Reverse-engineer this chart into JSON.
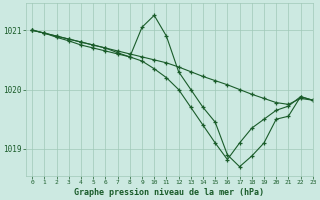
{
  "title": "Graphe pression niveau de la mer (hPa)",
  "background_color": "#cce9e1",
  "line_color": "#1a5c2a",
  "grid_color": "#a0c8b8",
  "text_color": "#1a5c2a",
  "xlim": [
    -0.5,
    23
  ],
  "ylim": [
    1018.55,
    1021.45
  ],
  "yticks": [
    1019,
    1020,
    1021
  ],
  "xticks": [
    0,
    1,
    2,
    3,
    4,
    5,
    6,
    7,
    8,
    9,
    10,
    11,
    12,
    13,
    14,
    15,
    16,
    17,
    18,
    19,
    20,
    21,
    22,
    23
  ],
  "series": [
    {
      "x": [
        0,
        1,
        2,
        3,
        4,
        5,
        6,
        7,
        8,
        9,
        10,
        11,
        12,
        13,
        14,
        15,
        16,
        17,
        18,
        19,
        20,
        21,
        22,
        23
      ],
      "y": [
        1021.0,
        1020.95,
        1020.9,
        1020.85,
        1020.8,
        1020.75,
        1020.7,
        1020.65,
        1020.6,
        1020.55,
        1020.5,
        1020.45,
        1020.38,
        1020.3,
        1020.22,
        1020.15,
        1020.08,
        1020.0,
        1019.92,
        1019.85,
        1019.78,
        1019.75,
        1019.85,
        1019.82
      ]
    },
    {
      "x": [
        0,
        1,
        2,
        3,
        4,
        5,
        6,
        7,
        8,
        9,
        10,
        11,
        12,
        13,
        14,
        15,
        16,
        17,
        18,
        19,
        20,
        21,
        22,
        23
      ],
      "y": [
        1021.0,
        1020.95,
        1020.9,
        1020.85,
        1020.8,
        1020.75,
        1020.7,
        1020.62,
        1020.55,
        1021.05,
        1021.25,
        1020.9,
        1020.3,
        1020.0,
        1019.7,
        1019.45,
        1018.9,
        1018.7,
        1018.88,
        1019.1,
        1019.5,
        1019.55,
        1019.88,
        1019.82
      ]
    },
    {
      "x": [
        0,
        1,
        2,
        3,
        4,
        5,
        6,
        7,
        8,
        9,
        10,
        11,
        12,
        13,
        14,
        15,
        16,
        17,
        18,
        19,
        20,
        21,
        22,
        23
      ],
      "y": [
        1021.0,
        1020.95,
        1020.88,
        1020.82,
        1020.75,
        1020.7,
        1020.65,
        1020.6,
        1020.55,
        1020.48,
        1020.35,
        1020.2,
        1020.0,
        1019.7,
        1019.4,
        1019.1,
        1018.82,
        1019.1,
        1019.35,
        1019.5,
        1019.65,
        1019.72,
        1019.88,
        1019.82
      ]
    }
  ]
}
